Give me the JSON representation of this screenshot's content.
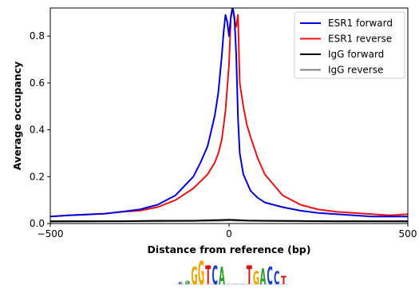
{
  "chart_data": {
    "type": "line",
    "xlabel": "Distance from reference (bp)",
    "ylabel": "Average occupancy",
    "xlim": [
      -500,
      500
    ],
    "ylim": [
      0,
      0.92
    ],
    "xticks": [
      -500,
      0,
      500
    ],
    "xtick_labels": [
      "−500",
      "0",
      "500"
    ],
    "yticks": [
      0.0,
      0.2,
      0.4,
      0.6,
      0.8
    ],
    "ytick_labels": [
      "0.0",
      "0.2",
      "0.4",
      "0.6",
      "0.8"
    ],
    "grid": false,
    "legend_position": "top-right",
    "series": [
      {
        "name": "ESR1 forward",
        "color": "#0000dd",
        "x": [
          -500,
          -450,
          -400,
          -350,
          -300,
          -250,
          -200,
          -150,
          -100,
          -80,
          -60,
          -40,
          -30,
          -20,
          -15,
          -10,
          -5,
          0,
          5,
          10,
          15,
          20,
          25,
          30,
          40,
          60,
          80,
          100,
          150,
          200,
          250,
          300,
          350,
          400,
          450,
          500
        ],
        "y": [
          0.03,
          0.035,
          0.038,
          0.042,
          0.05,
          0.06,
          0.08,
          0.12,
          0.2,
          0.26,
          0.33,
          0.46,
          0.56,
          0.72,
          0.82,
          0.89,
          0.86,
          0.8,
          0.88,
          0.92,
          0.88,
          0.72,
          0.45,
          0.3,
          0.21,
          0.14,
          0.11,
          0.09,
          0.07,
          0.055,
          0.045,
          0.04,
          0.035,
          0.03,
          0.03,
          0.03
        ]
      },
      {
        "name": "ESR1 reverse",
        "color": "#ee1111",
        "x": [
          -500,
          -450,
          -400,
          -350,
          -300,
          -250,
          -200,
          -150,
          -100,
          -80,
          -60,
          -40,
          -30,
          -20,
          -10,
          0,
          5,
          10,
          15,
          20,
          25,
          30,
          40,
          50,
          60,
          80,
          100,
          150,
          200,
          250,
          300,
          350,
          400,
          450,
          500
        ],
        "y": [
          0.03,
          0.035,
          0.038,
          0.042,
          0.05,
          0.055,
          0.07,
          0.1,
          0.15,
          0.18,
          0.21,
          0.26,
          0.3,
          0.36,
          0.48,
          0.68,
          0.88,
          0.93,
          0.87,
          0.84,
          0.89,
          0.6,
          0.5,
          0.42,
          0.37,
          0.28,
          0.21,
          0.12,
          0.08,
          0.06,
          0.05,
          0.045,
          0.04,
          0.035,
          0.04
        ]
      },
      {
        "name": "IgG forward",
        "color": "#000000",
        "x": [
          -500,
          -400,
          -300,
          -200,
          -100,
          -50,
          -20,
          0,
          20,
          50,
          100,
          200,
          300,
          400,
          500
        ],
        "y": [
          0.01,
          0.01,
          0.01,
          0.012,
          0.012,
          0.014,
          0.015,
          0.016,
          0.015,
          0.013,
          0.012,
          0.011,
          0.01,
          0.01,
          0.01
        ]
      },
      {
        "name": "IgG reverse",
        "color": "#808080",
        "x": [
          -500,
          -400,
          -300,
          -200,
          -100,
          -50,
          -20,
          0,
          20,
          50,
          100,
          200,
          300,
          400,
          500
        ],
        "y": [
          0.008,
          0.009,
          0.01,
          0.01,
          0.011,
          0.012,
          0.013,
          0.014,
          0.013,
          0.012,
          0.011,
          0.01,
          0.009,
          0.009,
          0.008
        ]
      }
    ]
  },
  "motif": {
    "letters": [
      {
        "char": "c",
        "color": "#1a3fd1",
        "height": 0.12
      },
      {
        "char": "a",
        "color": "#2ca02c",
        "height": 0.2
      },
      {
        "char": "G",
        "color": "#f0a500",
        "height": 0.75
      },
      {
        "char": "G",
        "color": "#f0a500",
        "height": 1.0
      },
      {
        "char": "T",
        "color": "#dd1111",
        "height": 0.8
      },
      {
        "char": "C",
        "color": "#1a3fd1",
        "height": 0.8
      },
      {
        "char": "A",
        "color": "#2ca02c",
        "height": 0.75
      },
      {
        "char": ".",
        "color": "#999999",
        "height": 0.08
      },
      {
        "char": ".",
        "color": "#999999",
        "height": 0.08
      },
      {
        "char": ".",
        "color": "#999999",
        "height": 0.08
      },
      {
        "char": "T",
        "color": "#dd1111",
        "height": 0.8
      },
      {
        "char": "G",
        "color": "#f0a500",
        "height": 0.55
      },
      {
        "char": "A",
        "color": "#2ca02c",
        "height": 0.7
      },
      {
        "char": "C",
        "color": "#1a3fd1",
        "height": 0.75
      },
      {
        "char": "C",
        "color": "#1a3fd1",
        "height": 0.55
      },
      {
        "char": "T",
        "color": "#dd1111",
        "height": 0.35
      }
    ]
  }
}
